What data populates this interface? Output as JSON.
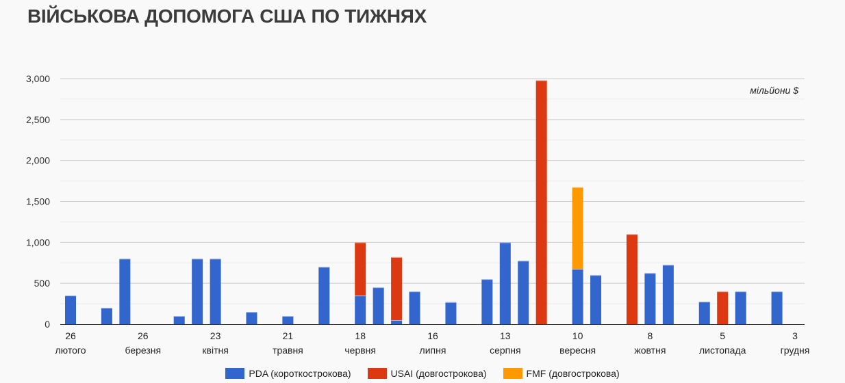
{
  "title": "ВІЙСЬКОВА ДОПОМОГА США ПО ТИЖНЯХ",
  "chart_data": {
    "type": "bar",
    "stacked": true,
    "title": "ВІЙСЬКОВА ДОПОМОГА США ПО ТИЖНЯХ",
    "unit_label": "мільйони $",
    "ylim": [
      0,
      3000
    ],
    "yticks": [
      "0",
      "500",
      "1,000",
      "1,500",
      "2,000",
      "2,500",
      "3,000"
    ],
    "ytick_values": [
      0,
      500,
      1000,
      1500,
      2000,
      2500,
      3000
    ],
    "grid": true,
    "legend_position": "bottom",
    "x_labels": [
      {
        "week": 0,
        "day": "26",
        "month": "лютого"
      },
      {
        "week": 4,
        "day": "26",
        "month": "березня"
      },
      {
        "week": 8,
        "day": "23",
        "month": "квітня"
      },
      {
        "week": 12,
        "day": "21",
        "month": "травня"
      },
      {
        "week": 16,
        "day": "18",
        "month": "червня"
      },
      {
        "week": 20,
        "day": "16",
        "month": "липня"
      },
      {
        "week": 24,
        "day": "13",
        "month": "серпня"
      },
      {
        "week": 28,
        "day": "10",
        "month": "вересня"
      },
      {
        "week": 32,
        "day": "8",
        "month": "жовтня"
      },
      {
        "week": 36,
        "day": "5",
        "month": "листопада"
      },
      {
        "week": 40,
        "day": "3",
        "month": "грудня"
      }
    ],
    "series": [
      {
        "name": "PDA (короткострокова)",
        "color": "#3366cc"
      },
      {
        "name": "USAI (довгострокова)",
        "color": "#dc3912"
      },
      {
        "name": "FMF (довгострокова)",
        "color": "#ff9900"
      }
    ],
    "bars": [
      {
        "week": 0,
        "values": [
          350,
          0,
          0
        ]
      },
      {
        "week": 2,
        "values": [
          200,
          0,
          0
        ]
      },
      {
        "week": 3,
        "values": [
          800,
          0,
          0
        ]
      },
      {
        "week": 6,
        "values": [
          100,
          0,
          0
        ]
      },
      {
        "week": 7,
        "values": [
          800,
          0,
          0
        ]
      },
      {
        "week": 8,
        "values": [
          800,
          0,
          0
        ]
      },
      {
        "week": 10,
        "values": [
          150,
          0,
          0
        ]
      },
      {
        "week": 12,
        "values": [
          100,
          0,
          0
        ]
      },
      {
        "week": 14,
        "values": [
          700,
          0,
          0
        ]
      },
      {
        "week": 16,
        "values": [
          350,
          650,
          0
        ]
      },
      {
        "week": 17,
        "values": [
          450,
          0,
          0
        ]
      },
      {
        "week": 18,
        "values": [
          50,
          770,
          0
        ]
      },
      {
        "week": 19,
        "values": [
          400,
          0,
          0
        ]
      },
      {
        "week": 21,
        "values": [
          270,
          0,
          0
        ]
      },
      {
        "week": 23,
        "values": [
          550,
          0,
          0
        ]
      },
      {
        "week": 24,
        "values": [
          1000,
          0,
          0
        ]
      },
      {
        "week": 25,
        "values": [
          775,
          0,
          0
        ]
      },
      {
        "week": 26,
        "values": [
          0,
          2980,
          0
        ]
      },
      {
        "week": 28,
        "values": [
          675,
          0,
          1000
        ]
      },
      {
        "week": 29,
        "values": [
          600,
          0,
          0
        ]
      },
      {
        "week": 31,
        "values": [
          0,
          1100,
          0
        ]
      },
      {
        "week": 32,
        "values": [
          625,
          0,
          0
        ]
      },
      {
        "week": 33,
        "values": [
          725,
          0,
          0
        ]
      },
      {
        "week": 35,
        "values": [
          275,
          0,
          0
        ]
      },
      {
        "week": 36,
        "values": [
          0,
          400,
          0
        ]
      },
      {
        "week": 37,
        "values": [
          400,
          0,
          0
        ]
      },
      {
        "week": 39,
        "values": [
          400,
          0,
          0
        ]
      }
    ]
  }
}
